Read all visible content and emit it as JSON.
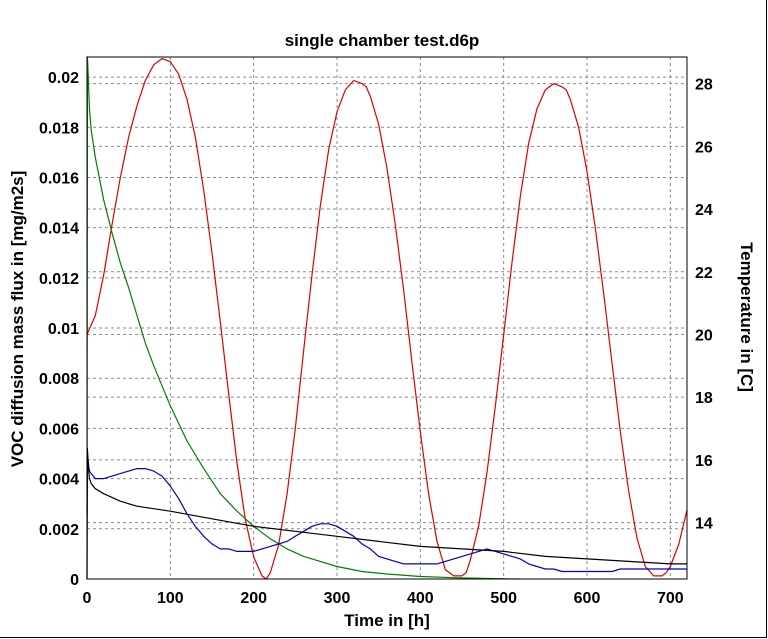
{
  "chart_data": {
    "type": "line",
    "title": "single chamber test.d6p",
    "xlabel": "Time in [h]",
    "ylabel": "VOC diffusion mass flux in [mg/m2s]",
    "y2label": "Temperature in [C]",
    "xlim": [
      0,
      720
    ],
    "ylim": [
      0,
      0.0208
    ],
    "y2lim": [
      12.2,
      28.85
    ],
    "grid": true,
    "x_ticks": [
      "0",
      "100",
      "200",
      "300",
      "400",
      "500",
      "600",
      "700"
    ],
    "y_ticks": [
      "0",
      "0.002",
      "0.004",
      "0.006",
      "0.008",
      "0.01",
      "0.012",
      "0.014",
      "0.016",
      "0.018",
      "0.02"
    ],
    "y2_ticks": [
      "14",
      "16",
      "18",
      "20",
      "22",
      "24",
      "26",
      "28"
    ],
    "series": [
      {
        "color": "#dd0000",
        "axis": "right",
        "x": [
          0,
          10,
          20,
          30,
          40,
          50,
          60,
          70,
          80,
          90,
          100,
          110,
          120,
          130,
          140,
          150,
          160,
          170,
          180,
          190,
          200,
          210,
          215,
          220,
          230,
          240,
          250,
          260,
          270,
          280,
          290,
          300,
          310,
          320,
          330,
          335,
          340,
          350,
          360,
          370,
          380,
          390,
          400,
          410,
          420,
          430,
          440,
          450,
          455,
          460,
          470,
          480,
          490,
          500,
          510,
          520,
          530,
          540,
          550,
          560,
          570,
          575,
          580,
          590,
          600,
          610,
          620,
          630,
          640,
          650,
          660,
          670,
          680,
          690,
          695,
          700,
          710,
          720
        ],
        "y": [
          20.0,
          20.6,
          21.9,
          23.5,
          25.0,
          26.3,
          27.3,
          28.1,
          28.6,
          28.8,
          28.7,
          28.3,
          27.5,
          26.3,
          24.6,
          22.6,
          20.4,
          18.1,
          15.9,
          14.1,
          12.9,
          12.3,
          12.2,
          12.4,
          13.3,
          14.9,
          17.0,
          19.5,
          21.9,
          24.1,
          25.9,
          27.1,
          27.8,
          28.1,
          28.0,
          27.9,
          27.6,
          26.7,
          25.3,
          23.5,
          21.4,
          19.1,
          16.9,
          14.9,
          13.4,
          12.5,
          12.3,
          12.3,
          12.4,
          12.8,
          13.9,
          15.6,
          17.7,
          20.0,
          22.3,
          24.4,
          26.1,
          27.2,
          27.8,
          28.0,
          27.9,
          27.8,
          27.5,
          26.6,
          25.2,
          23.4,
          21.3,
          19.1,
          16.9,
          15.0,
          13.5,
          12.6,
          12.3,
          12.3,
          12.4,
          12.6,
          13.3,
          14.4
        ]
      },
      {
        "color": "#008000",
        "axis": "left",
        "x": [
          0,
          0.5,
          1,
          2,
          3,
          5,
          10,
          20,
          30,
          40,
          50,
          60,
          70,
          80,
          90,
          100,
          120,
          140,
          160,
          180,
          200,
          220,
          240,
          260,
          280,
          300,
          330,
          360,
          400,
          440,
          480,
          520
        ],
        "y": [
          0.0,
          0.0208,
          0.0205,
          0.0195,
          0.0187,
          0.0179,
          0.0168,
          0.0151,
          0.0138,
          0.0126,
          0.0116,
          0.0105,
          0.0094,
          0.0085,
          0.0077,
          0.0069,
          0.0055,
          0.0044,
          0.0034,
          0.0027,
          0.0021,
          0.0016,
          0.0012,
          0.0009,
          0.0007,
          0.0005,
          0.0003,
          0.0002,
          0.0001,
          5e-05,
          2e-05,
          0.0
        ]
      },
      {
        "color": "#0000cc",
        "axis": "left",
        "x": [
          0,
          0.5,
          1,
          2,
          3,
          5,
          10,
          20,
          30,
          40,
          50,
          60,
          70,
          80,
          90,
          100,
          110,
          120,
          130,
          140,
          150,
          160,
          170,
          180,
          190,
          200,
          210,
          220,
          230,
          240,
          250,
          260,
          270,
          280,
          290,
          300,
          310,
          320,
          330,
          340,
          350,
          360,
          370,
          380,
          390,
          400,
          410,
          420,
          430,
          440,
          450,
          460,
          470,
          480,
          490,
          500,
          510,
          520,
          530,
          540,
          550,
          560,
          570,
          580,
          590,
          600,
          610,
          620,
          630,
          640,
          650,
          660,
          670,
          680,
          690,
          700,
          710,
          720
        ],
        "y": [
          0.0026,
          0.0051,
          0.0049,
          0.0045,
          0.0043,
          0.0042,
          0.004,
          0.004,
          0.0041,
          0.0042,
          0.0043,
          0.0044,
          0.0044,
          0.0043,
          0.0041,
          0.0037,
          0.0032,
          0.0026,
          0.0021,
          0.0017,
          0.0014,
          0.0012,
          0.0012,
          0.0011,
          0.0011,
          0.0011,
          0.0012,
          0.0013,
          0.0014,
          0.0015,
          0.0017,
          0.0019,
          0.0021,
          0.0022,
          0.0022,
          0.0021,
          0.0019,
          0.0017,
          0.0014,
          0.0012,
          0.0009,
          0.0008,
          0.0007,
          0.0006,
          0.0006,
          0.0006,
          0.0006,
          0.0006,
          0.0007,
          0.0008,
          0.0009,
          0.001,
          0.0011,
          0.0012,
          0.0011,
          0.001,
          0.0009,
          0.0008,
          0.0006,
          0.0005,
          0.0004,
          0.0004,
          0.0003,
          0.0003,
          0.0003,
          0.0003,
          0.0003,
          0.0003,
          0.0003,
          0.0004,
          0.0004,
          0.0004,
          0.0004,
          0.0004,
          0.0004,
          0.0004,
          0.0004,
          0.0004
        ]
      },
      {
        "color": "#000000",
        "axis": "left",
        "x": [
          0,
          0.5,
          1,
          2,
          3,
          5,
          10,
          20,
          40,
          60,
          80,
          100,
          150,
          200,
          250,
          300,
          350,
          400,
          450,
          500,
          550,
          600,
          650,
          700,
          720
        ],
        "y": [
          0.0,
          0.0052,
          0.0047,
          0.0043,
          0.004,
          0.0038,
          0.0036,
          0.0034,
          0.0031,
          0.0029,
          0.0028,
          0.0027,
          0.0024,
          0.0021,
          0.0019,
          0.0017,
          0.0015,
          0.0013,
          0.0012,
          0.0011,
          0.0009,
          0.0008,
          0.0007,
          0.0006,
          0.0006
        ]
      }
    ]
  }
}
